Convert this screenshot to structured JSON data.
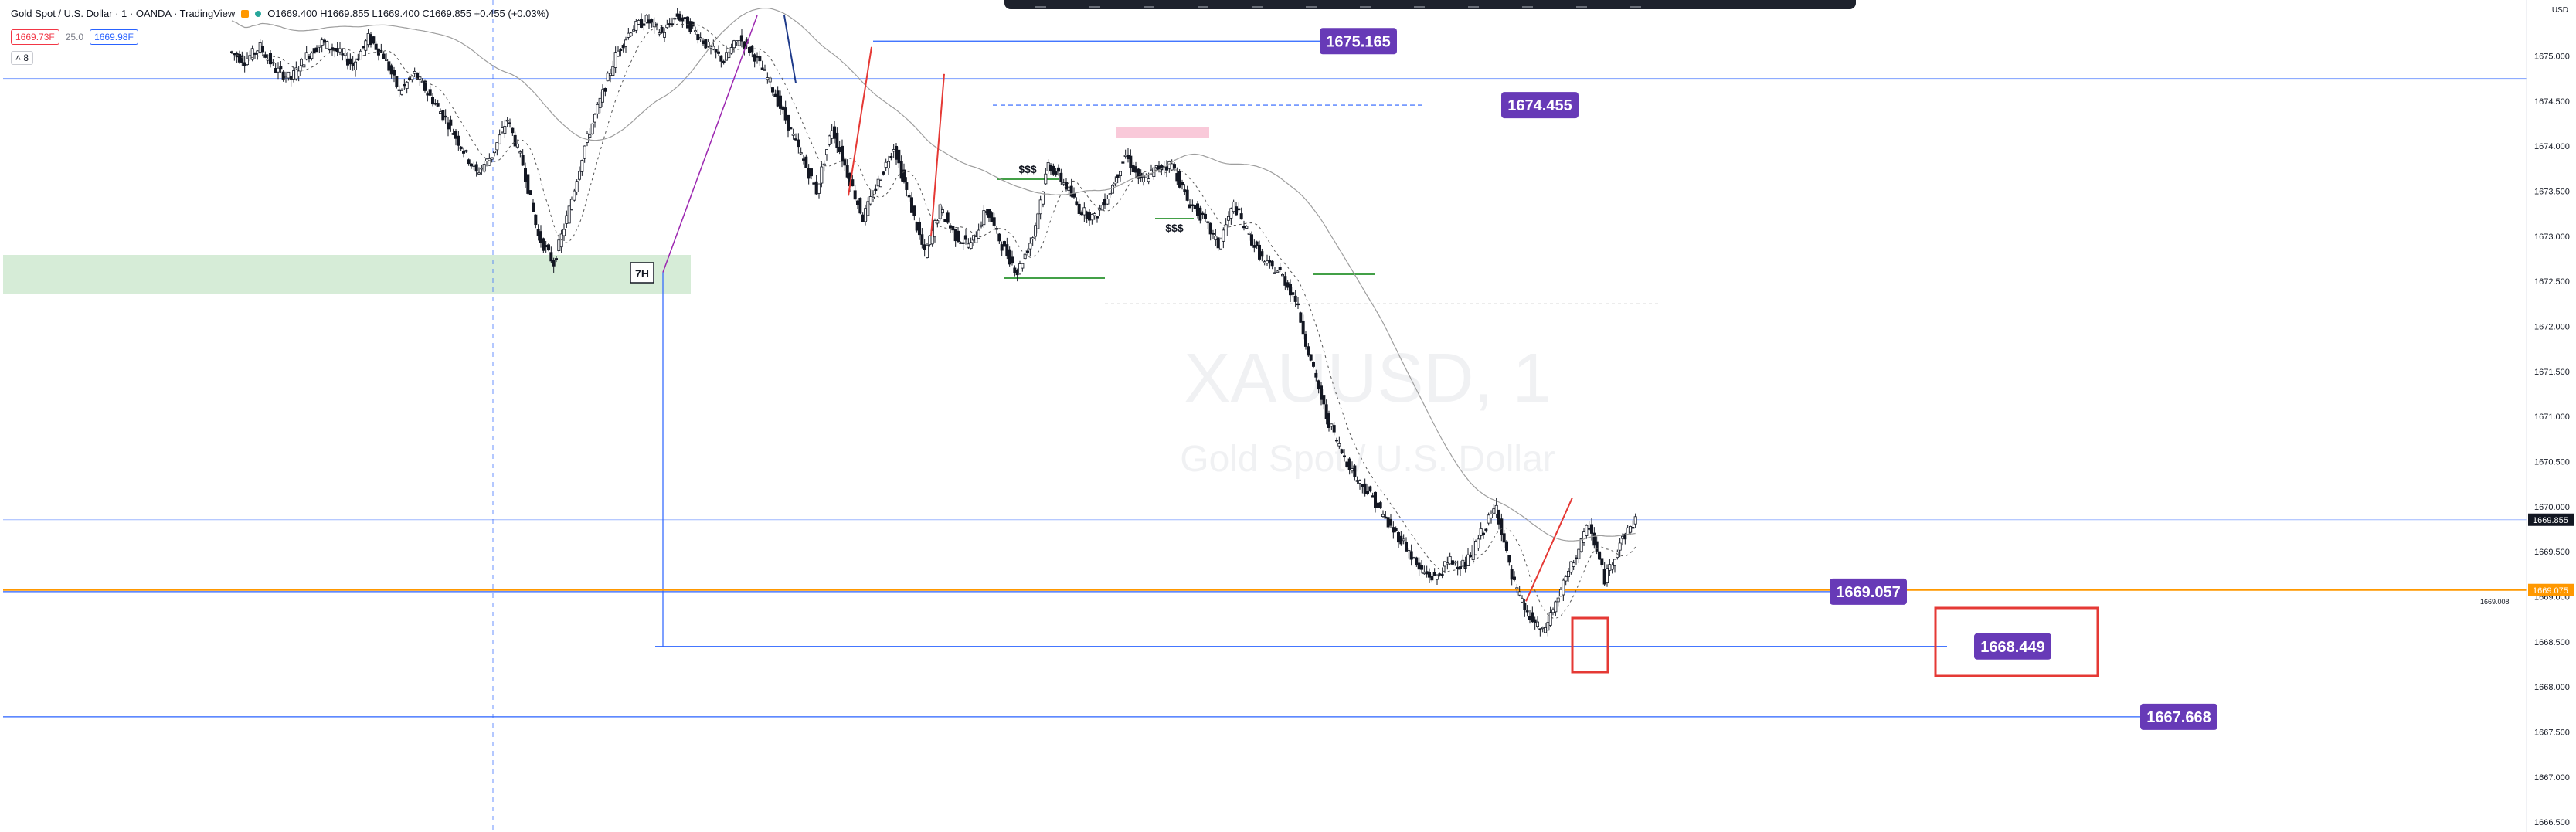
{
  "header": {
    "symbol_title": "Gold Spot / U.S. Dollar · 1 · OANDA · TradingView",
    "ohlc": "O1669.400 H1669.855 L1669.400 C1669.855 +0.455 (+0.03%)",
    "bid_price": "1669.73F",
    "spread": "25.0",
    "ask_price": "1669.98F",
    "collapse_label": "˄ 8",
    "currency_label": "USD"
  },
  "colors": {
    "up": "#131722",
    "down": "#131722",
    "label_bg": "#673ab7",
    "highlight_box": "#e53935",
    "demand_zone": "#c8e6c9",
    "supply_zone": "#f8bbd0",
    "blue_line": "#2962ff",
    "orange_line": "#ff9800"
  },
  "watermark": {
    "symbol": "XAUUSD, 1",
    "description": "Gold Spot / U.S. Dollar"
  },
  "chart_data": {
    "type": "candlestick",
    "y_range": [
      1666.45,
      1675.45
    ],
    "y_ticks": [
      "1675.000",
      "1674.500",
      "1674.000",
      "1673.500",
      "1673.000",
      "1672.500",
      "1672.000",
      "1671.500",
      "1671.000",
      "1670.500",
      "1670.000",
      "1669.500",
      "1669.000",
      "1668.500",
      "1668.000",
      "1667.500",
      "1667.000",
      "1666.500"
    ],
    "last_price": "1669.855",
    "orange_level_label": "1669.075",
    "small_level_text": "1669.008",
    "level_labels": [
      "1675.165",
      "1674.455",
      "1669.057",
      "1668.449",
      "1667.668"
    ],
    "zone_labels": [
      "7H",
      "$$$",
      "$$$"
    ],
    "approximate_price_path": [
      1675.05,
      1674.95,
      1675.1,
      1674.85,
      1674.75,
      1675.0,
      1675.15,
      1675.05,
      1674.9,
      1675.2,
      1675.0,
      1674.6,
      1674.8,
      1674.55,
      1674.3,
      1674.0,
      1673.7,
      1673.9,
      1674.3,
      1673.8,
      1673.0,
      1672.7,
      1673.3,
      1674.0,
      1674.5,
      1675.0,
      1675.3,
      1675.4,
      1675.25,
      1675.45,
      1675.3,
      1675.1,
      1674.95,
      1675.2,
      1675.0,
      1674.7,
      1674.3,
      1673.9,
      1673.5,
      1674.2,
      1673.7,
      1673.2,
      1673.6,
      1674.0,
      1673.4,
      1672.8,
      1673.3,
      1673.0,
      1672.9,
      1673.3,
      1672.9,
      1672.6,
      1673.0,
      1673.8,
      1673.6,
      1673.3,
      1673.2,
      1673.5,
      1673.9,
      1673.6,
      1673.75,
      1673.8,
      1673.4,
      1673.2,
      1672.9,
      1673.35,
      1673.0,
      1672.7,
      1672.6,
      1672.3,
      1671.6,
      1671.0,
      1670.6,
      1670.3,
      1670.1,
      1669.8,
      1669.6,
      1669.3,
      1669.2,
      1669.4,
      1669.35,
      1669.7,
      1670.0,
      1669.2,
      1668.8,
      1668.6,
      1669.0,
      1669.4,
      1669.8,
      1669.2,
      1669.6,
      1669.855
    ]
  }
}
